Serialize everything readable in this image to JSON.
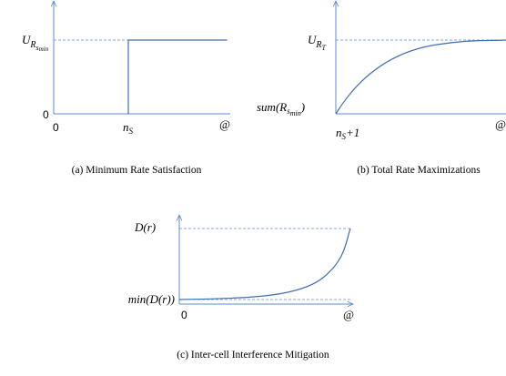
{
  "panels": [
    {
      "caption": "(a) Minimum Rate Satisfaction",
      "y_top": {
        "base": "U",
        "sub": "R",
        "subsub": "s",
        "subsubsub": "min"
      },
      "y_origin": "0",
      "x_labels": [
        "0",
        {
          "base": "n",
          "sub": "S"
        },
        "@"
      ]
    },
    {
      "caption": "(b) Total Rate Maximizations",
      "y_top": {
        "base": "U",
        "sub": "R",
        "subsub": "T"
      },
      "y_origin": {
        "before": "sum(",
        "base": "R",
        "sub": "s",
        "subsub": "min",
        "after": ")"
      },
      "x_labels": [
        {
          "base": "n",
          "sub": "S",
          "after": "+1"
        },
        "@"
      ]
    },
    {
      "caption": "(c) Inter-cell Interference Mitigation",
      "y_top": "D(r)",
      "y_origin": "min(D(r))",
      "x_labels": [
        "0",
        "@"
      ]
    }
  ]
}
